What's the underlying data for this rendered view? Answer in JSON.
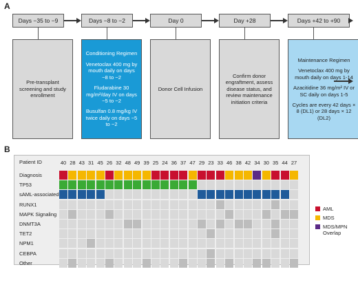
{
  "panel_a": {
    "letter": "A",
    "stages": [
      {
        "header": "Days −35 to −9",
        "body": [
          "Pre-transplant screening and study enrollment"
        ],
        "style": "gray"
      },
      {
        "header": "Days −8 to −2",
        "body": [
          "Conditioning Regimen",
          "Venetoclax 400 mg by mouth daily on days −8 to −2",
          "Fludarabine 30 mg/m²/day IV on days −5 to −2",
          "Busulfan 0.8 mg/kg IV twice daily on days −5 to −2"
        ],
        "style": "blue-dark"
      },
      {
        "header": "Day 0",
        "body": [
          "Donor Cell Infusion"
        ],
        "style": "gray"
      },
      {
        "header": "Day +28",
        "body": [
          "Confirm donor engraftment, assess disease status, and review maintenance initiation criteria"
        ],
        "style": "gray"
      },
      {
        "header": "Days +42 to +90",
        "body": [
          "Maintenance Regimen",
          "Venetoclax 400 mg by mouth daily on days 1-14",
          "Azacitidine 36 mg/m² IV or SC daily on days 1-5",
          "Cycles are every 42 days × 8 (DL1) or 28 days × 12 (DL2)"
        ],
        "style": "blue-light"
      }
    ]
  },
  "panel_b": {
    "letter": "B",
    "patient_id_label": "Patient ID",
    "patient_ids": [
      "40",
      "28",
      "43",
      "31",
      "45",
      "26",
      "32",
      "48",
      "49",
      "39",
      "25",
      "24",
      "36",
      "37",
      "47",
      "29",
      "23",
      "33",
      "46",
      "38",
      "42",
      "34",
      "30",
      "35",
      "44",
      "27"
    ],
    "rows": [
      {
        "label": "Diagnosis",
        "kind": "diagnosis",
        "values": [
          "AML",
          "MDS",
          "MDS",
          "MDS",
          "MDS",
          "AML",
          "MDS",
          "MDS",
          "MDS",
          "MDS",
          "AML",
          "AML",
          "AML",
          "AML",
          "MDS",
          "AML",
          "AML",
          "AML",
          "MDS",
          "MDS",
          "MDS",
          "MDS/MPN",
          "MDS",
          "AML",
          "AML",
          "MDS"
        ]
      },
      {
        "label": "TP53",
        "kind": "mutation",
        "color": "#3aaa35",
        "values": [
          1,
          1,
          1,
          1,
          1,
          1,
          1,
          1,
          1,
          1,
          1,
          1,
          1,
          1,
          1,
          0,
          0,
          0,
          0,
          0,
          0,
          0,
          0,
          0,
          0,
          0
        ]
      },
      {
        "label": "sAML-associated",
        "kind": "mutation",
        "color": "#1f5b9a",
        "values": [
          1,
          1,
          1,
          1,
          1,
          0,
          0,
          0,
          0,
          0,
          0,
          0,
          0,
          0,
          0,
          1,
          1,
          1,
          1,
          1,
          1,
          1,
          1,
          1,
          1,
          0
        ]
      },
      {
        "label": "RUNX1",
        "kind": "mutation",
        "color": "#bdbdbd",
        "values": [
          0,
          0,
          0,
          0,
          0,
          0,
          0,
          0,
          0,
          0,
          0,
          0,
          0,
          0,
          0,
          0,
          0,
          1,
          0,
          0,
          0,
          0,
          0,
          1,
          0,
          0
        ]
      },
      {
        "label": "MAPK Signaling",
        "kind": "mutation",
        "color": "#bdbdbd",
        "values": [
          0,
          1,
          0,
          0,
          0,
          1,
          0,
          0,
          0,
          0,
          0,
          0,
          0,
          0,
          0,
          0,
          0,
          0,
          1,
          0,
          0,
          0,
          1,
          0,
          1,
          1
        ]
      },
      {
        "label": "DNMT3A",
        "kind": "mutation",
        "color": "#bdbdbd",
        "values": [
          0,
          0,
          0,
          0,
          0,
          0,
          0,
          1,
          1,
          0,
          0,
          0,
          0,
          0,
          0,
          1,
          0,
          1,
          0,
          1,
          1,
          0,
          0,
          1,
          0,
          0
        ]
      },
      {
        "label": "TET2",
        "kind": "mutation",
        "color": "#bdbdbd",
        "values": [
          0,
          0,
          0,
          0,
          0,
          0,
          0,
          0,
          0,
          0,
          0,
          0,
          0,
          0,
          0,
          0,
          1,
          0,
          0,
          0,
          0,
          0,
          0,
          1,
          0,
          0
        ]
      },
      {
        "label": "NPM1",
        "kind": "mutation",
        "color": "#bdbdbd",
        "values": [
          0,
          0,
          0,
          1,
          0,
          0,
          0,
          0,
          0,
          0,
          0,
          0,
          0,
          0,
          0,
          0,
          0,
          0,
          0,
          0,
          0,
          0,
          0,
          0,
          0,
          0
        ]
      },
      {
        "label": "CEBPA",
        "kind": "mutation",
        "color": "#bdbdbd",
        "values": [
          0,
          0,
          0,
          0,
          0,
          0,
          0,
          0,
          0,
          0,
          0,
          0,
          0,
          0,
          0,
          0,
          1,
          0,
          0,
          0,
          0,
          0,
          0,
          0,
          0,
          0
        ]
      },
      {
        "label": "Other",
        "kind": "mutation",
        "color": "#bdbdbd",
        "values": [
          0,
          1,
          0,
          0,
          0,
          1,
          0,
          0,
          0,
          1,
          0,
          0,
          0,
          1,
          0,
          0,
          1,
          0,
          1,
          0,
          0,
          1,
          1,
          0,
          0,
          1
        ]
      }
    ],
    "diagnosis_colors": {
      "AML": "#c8102e",
      "MDS": "#f5b700",
      "MDS/MPN": "#5b2a86"
    },
    "empty_color": "#d9d9d9",
    "legend": [
      {
        "label": "AML",
        "color": "#c8102e"
      },
      {
        "label": "MDS",
        "color": "#f5b700"
      },
      {
        "label": "MDS/MPN Overlap",
        "color": "#5b2a86"
      }
    ]
  }
}
